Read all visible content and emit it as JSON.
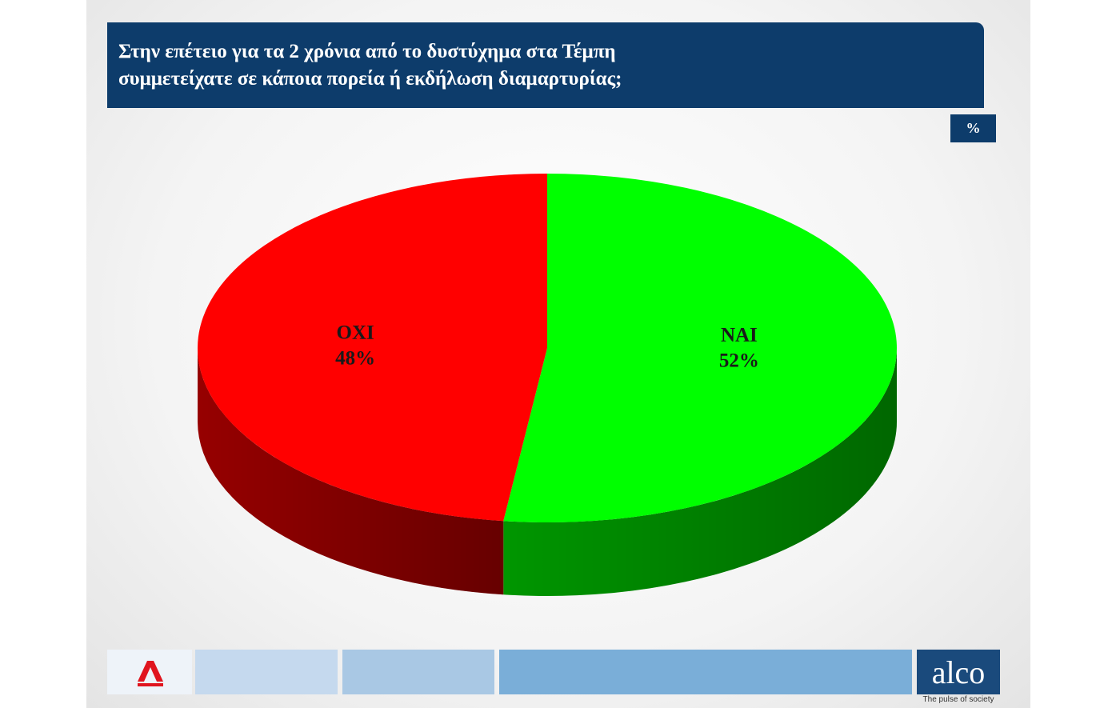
{
  "chart_data": {
    "type": "pie3d",
    "title": "Στην επέτειο για τα 2 χρόνια από το δυστύχημα στα Τέμπη\nσυμμετείχατε σε κάποια πορεία ή εκδήλωση διαμαρτυρίας;",
    "unit": "%",
    "categories": [
      "ΝΑΙ",
      "ΟΧΙ"
    ],
    "values": [
      52,
      48
    ],
    "value_labels": [
      "52%",
      "48%"
    ],
    "colors": [
      "#00ff00",
      "#ff0000"
    ]
  },
  "footer": {
    "logo": "alco",
    "tagline": "The pulse of society"
  }
}
